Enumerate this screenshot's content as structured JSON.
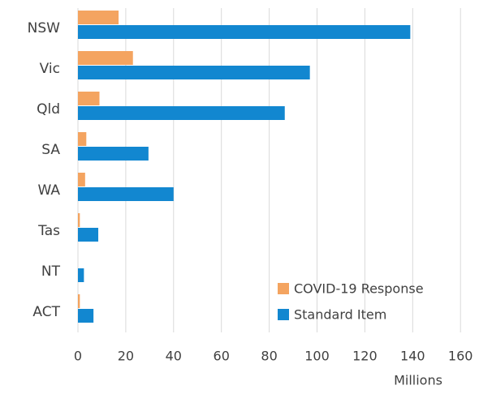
{
  "chart_data": {
    "type": "bar",
    "orientation": "horizontal",
    "categories": [
      "NSW",
      "Vic",
      "Qld",
      "SA",
      "WA",
      "Tas",
      "NT",
      "ACT"
    ],
    "series": [
      {
        "name": "COVID-19 Response",
        "color": "#F4A460",
        "values": [
          17,
          23,
          9,
          3.5,
          3,
          0.8,
          0,
          0.8
        ]
      },
      {
        "name": "Standard Item",
        "color": "#1287D0",
        "values": [
          139,
          97,
          86.5,
          29.5,
          40,
          8.5,
          2.5,
          6.5
        ]
      }
    ],
    "xlim": [
      0,
      160
    ],
    "xticks": [
      0,
      20,
      40,
      60,
      80,
      100,
      120,
      140,
      160
    ],
    "xlabel": "Millions",
    "ylabel": "",
    "title": "",
    "grid": "vertical",
    "legend_position": "bottom-right"
  }
}
